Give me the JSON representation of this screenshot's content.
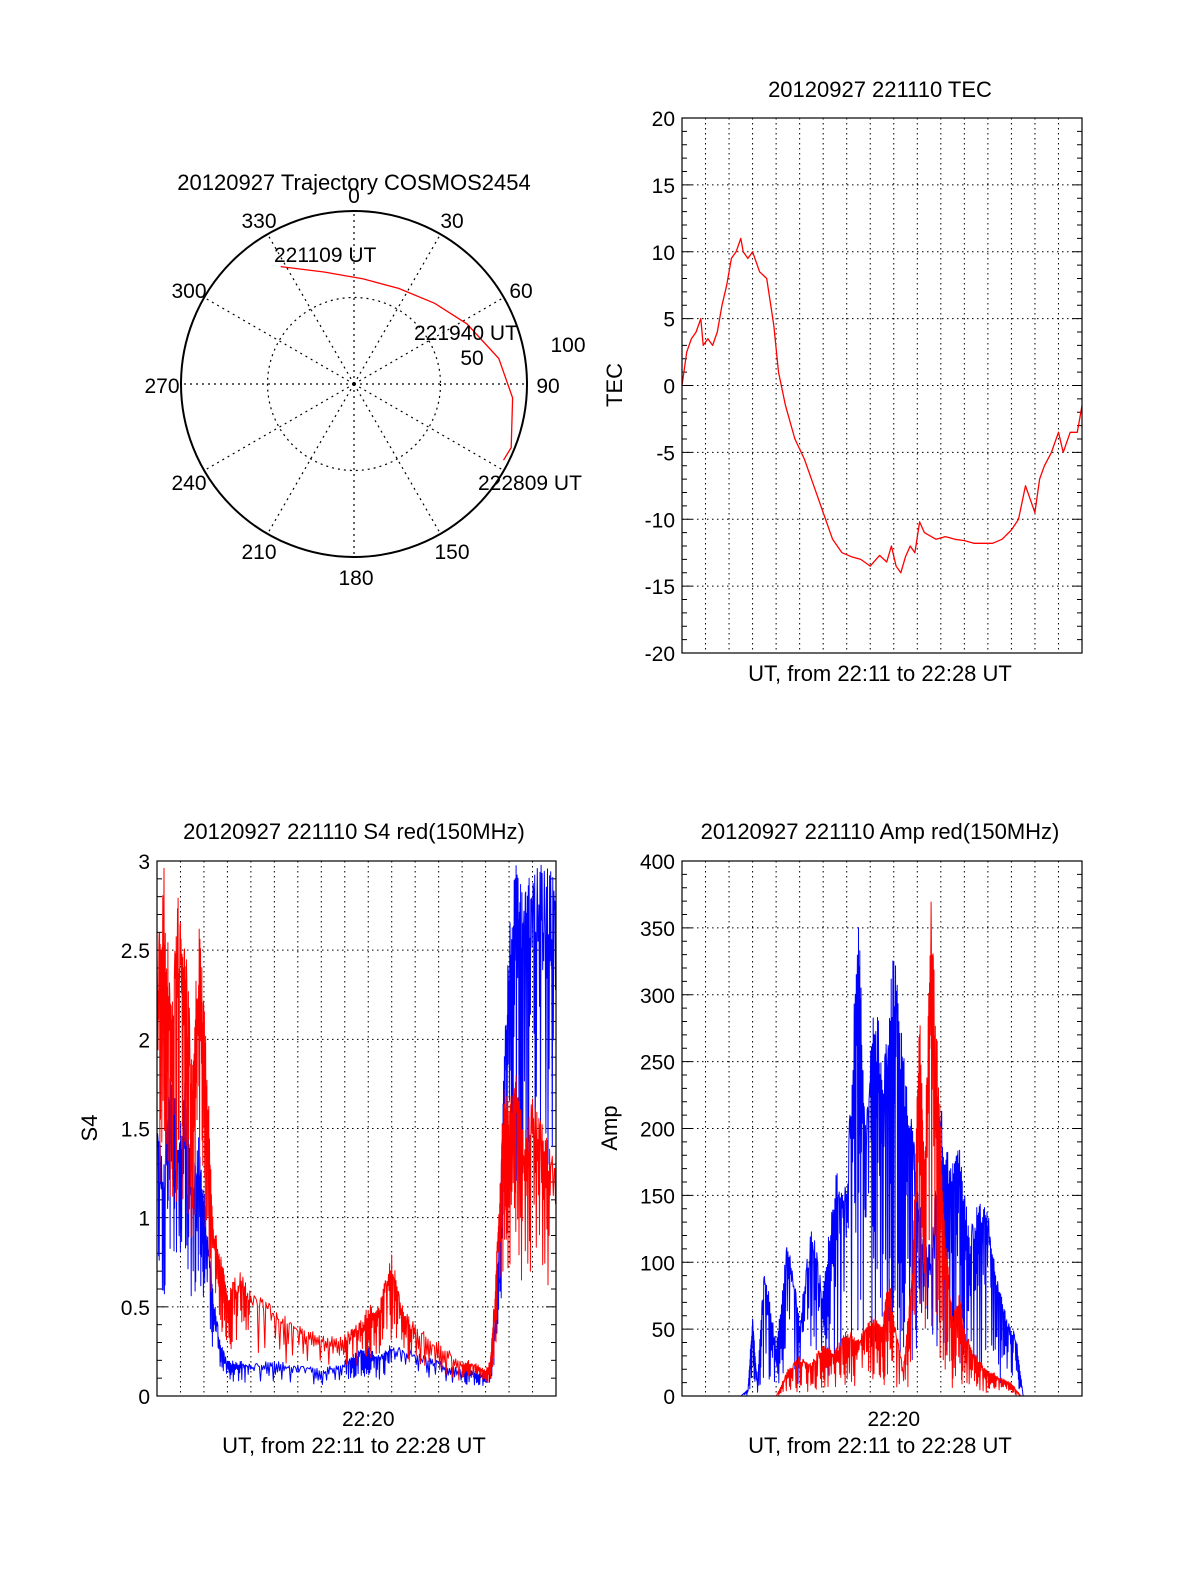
{
  "chart_data": [
    {
      "id": "trajectory",
      "type": "polar",
      "title": "20120927 Trajectory COSMOS2454",
      "azimuth_labels": [
        "0",
        "30",
        "60",
        "90",
        "150",
        "180",
        "210",
        "240",
        "270",
        "300",
        "330"
      ],
      "radial_labels": [
        "50",
        "100"
      ],
      "rmax": 100,
      "grid": "dotted",
      "series": [
        {
          "color": "#ff0000",
          "points": [
            {
              "az": 328,
              "r": 80
            },
            {
              "az": 345,
              "r": 67
            },
            {
              "az": 5,
              "r": 61
            },
            {
              "az": 25,
              "r": 61
            },
            {
              "az": 45,
              "r": 66
            },
            {
              "az": 62,
              "r": 74
            },
            {
              "az": 80,
              "r": 85
            },
            {
              "az": 95,
              "r": 92
            },
            {
              "az": 112,
              "r": 98
            },
            {
              "az": 117,
              "r": 97
            }
          ]
        }
      ],
      "annotations": [
        {
          "text": "221109 UT",
          "az": 328,
          "r": 80
        },
        {
          "text": "221940 UT",
          "az": 55,
          "r": 69
        },
        {
          "text": "222809 UT",
          "az": 117,
          "r": 97
        }
      ]
    },
    {
      "id": "tec",
      "type": "line",
      "title": "20120927 221110 TEC",
      "xlabel": "UT, from 22:11 to 22:28 UT",
      "ylabel": "TEC",
      "xlim": [
        0,
        17
      ],
      "ylim": [
        -20,
        20
      ],
      "yticks": [
        "20",
        "15",
        "10",
        "5",
        "0",
        "-5",
        "-10",
        "-15",
        "-20"
      ],
      "grid": true,
      "series": [
        {
          "color": "#ff0000",
          "x": [
            0,
            0.2,
            0.4,
            0.6,
            0.8,
            0.9,
            1.1,
            1.3,
            1.5,
            1.7,
            1.9,
            2.1,
            2.3,
            2.5,
            2.6,
            2.8,
            3.0,
            3.3,
            3.6,
            3.9,
            4.1,
            4.4,
            4.8,
            5.2,
            5.6,
            6.0,
            6.4,
            6.8,
            7.2,
            7.6,
            8.0,
            8.4,
            8.7,
            8.9,
            9.1,
            9.3,
            9.5,
            9.7,
            9.9,
            10.1,
            10.3,
            10.5,
            10.8,
            11.2,
            11.6,
            12.0,
            12.4,
            12.8,
            13.2,
            13.6,
            14.0,
            14.3,
            14.6,
            14.8,
            15.0,
            15.2,
            15.4,
            15.7,
            16.0,
            16.2,
            16.5,
            16.8,
            17.0
          ],
          "y": [
            0,
            2.5,
            3.5,
            4,
            5,
            3,
            3.5,
            3,
            4,
            6,
            7.5,
            9.5,
            10,
            11,
            10,
            9.5,
            10,
            8.5,
            8,
            4.5,
            1,
            -1.5,
            -4,
            -5.5,
            -7.5,
            -9.5,
            -11.5,
            -12.5,
            -12.8,
            -13,
            -13.5,
            -12.7,
            -13.2,
            -12,
            -13.5,
            -14,
            -12.8,
            -12,
            -12.5,
            -10.2,
            -11,
            -11.2,
            -11.5,
            -11.3,
            -11.5,
            -11.6,
            -11.8,
            -11.8,
            -11.8,
            -11.5,
            -10.8,
            -10,
            -7.5,
            -8.5,
            -9.5,
            -7,
            -6,
            -5,
            -3.5,
            -5,
            -3.5,
            -3.5,
            -1.5
          ]
        }
      ]
    },
    {
      "id": "s4",
      "type": "line",
      "title": "20120927 221110 S4 red(150MHz)",
      "xlabel": "UT, from 22:11 to 22:28 UT",
      "ylabel": "S4",
      "xlim": [
        0,
        17
      ],
      "ylim": [
        0,
        3
      ],
      "yticks": [
        "3",
        "2.5",
        "2",
        "1.5",
        "1",
        "0.5",
        "0"
      ],
      "xtick_label": "22:20",
      "xtick_value": 9,
      "grid": true,
      "series": [
        {
          "color": "#0000ff",
          "x": [
            0,
            0.3,
            0.6,
            0.9,
            1.2,
            1.5,
            1.8,
            2.1,
            2.4,
            2.7,
            3.0,
            3.5,
            4.0,
            5.0,
            6.0,
            7.0,
            8.0,
            8.5,
            9.0,
            9.5,
            10.0,
            11.0,
            12.0,
            13.0,
            13.5,
            14.0,
            14.2,
            14.4,
            14.6,
            14.8,
            15.0,
            15.3,
            15.6,
            16.0,
            16.5,
            17.0
          ],
          "y": [
            1.5,
            1.3,
            2.0,
            1.4,
            1.8,
            1.2,
            1.5,
            1.0,
            0.6,
            0.3,
            0.2,
            0.2,
            0.18,
            0.2,
            0.18,
            0.15,
            0.2,
            0.25,
            0.28,
            0.22,
            0.3,
            0.25,
            0.2,
            0.15,
            0.15,
            0.12,
            0.2,
            0.4,
            1.0,
            2.0,
            2.6,
            3.0,
            2.8,
            3.0,
            3.0,
            3.0
          ]
        },
        {
          "color": "#ff0000",
          "x": [
            0,
            0.3,
            0.6,
            0.9,
            1.2,
            1.5,
            1.8,
            2.1,
            2.4,
            2.7,
            3.0,
            3.5,
            4.0,
            5.0,
            6.0,
            7.0,
            8.0,
            8.5,
            9.0,
            9.5,
            10.0,
            10.5,
            11.0,
            12.0,
            13.0,
            13.5,
            14.0,
            14.2,
            14.4,
            14.6,
            14.8,
            15.0,
            15.3,
            15.6,
            16.0,
            16.5,
            17.0
          ],
          "y": [
            2.5,
            3.0,
            2.2,
            2.8,
            2.6,
            1.9,
            2.7,
            2.0,
            1.0,
            0.8,
            0.6,
            0.7,
            0.6,
            0.5,
            0.4,
            0.35,
            0.35,
            0.4,
            0.5,
            0.55,
            0.8,
            0.5,
            0.4,
            0.3,
            0.2,
            0.2,
            0.15,
            0.2,
            0.6,
            1.2,
            1.8,
            1.6,
            1.9,
            1.5,
            1.7,
            1.5,
            1.4
          ]
        }
      ]
    },
    {
      "id": "amp",
      "type": "line",
      "title": "20120927 221110 Amp red(150MHz)",
      "xlabel": "UT, from 22:11 to 22:28 UT",
      "ylabel": "Amp",
      "xlim": [
        0,
        17
      ],
      "ylim": [
        0,
        400
      ],
      "yticks": [
        "400",
        "350",
        "300",
        "250",
        "200",
        "150",
        "100",
        "50",
        "0"
      ],
      "xtick_label": "22:20",
      "xtick_value": 9,
      "grid": true,
      "series": [
        {
          "color": "#0000ff",
          "x": [
            0,
            2.5,
            2.8,
            3.0,
            3.2,
            3.5,
            4.0,
            4.5,
            5.0,
            5.5,
            6.0,
            6.5,
            7.0,
            7.5,
            7.8,
            8.2,
            8.6,
            9.0,
            9.4,
            9.8,
            10.2,
            10.6,
            11.0,
            11.4,
            11.8,
            12.2,
            12.6,
            13.0,
            13.4,
            13.8,
            14.2,
            14.5,
            15.0,
            17.0
          ],
          "y": [
            0,
            0,
            5,
            60,
            10,
            100,
            40,
            120,
            60,
            130,
            80,
            170,
            160,
            370,
            210,
            300,
            250,
            340,
            260,
            200,
            130,
            110,
            220,
            170,
            200,
            120,
            150,
            140,
            90,
            60,
            45,
            0,
            0,
            0
          ]
        },
        {
          "color": "#ff0000",
          "x": [
            0,
            4.0,
            4.5,
            5.0,
            5.5,
            6.0,
            6.5,
            7.0,
            7.5,
            8.0,
            8.5,
            8.8,
            9.0,
            9.4,
            9.8,
            10.1,
            10.3,
            10.6,
            10.9,
            11.2,
            11.5,
            11.8,
            12.0,
            12.5,
            13.0,
            13.5,
            14.0,
            14.4,
            15.0,
            17.0
          ],
          "y": [
            0,
            0,
            20,
            30,
            25,
            40,
            35,
            50,
            45,
            60,
            55,
            90,
            60,
            20,
            100,
            300,
            180,
            380,
            240,
            120,
            60,
            80,
            50,
            30,
            20,
            15,
            10,
            0,
            0,
            0
          ]
        }
      ]
    }
  ]
}
